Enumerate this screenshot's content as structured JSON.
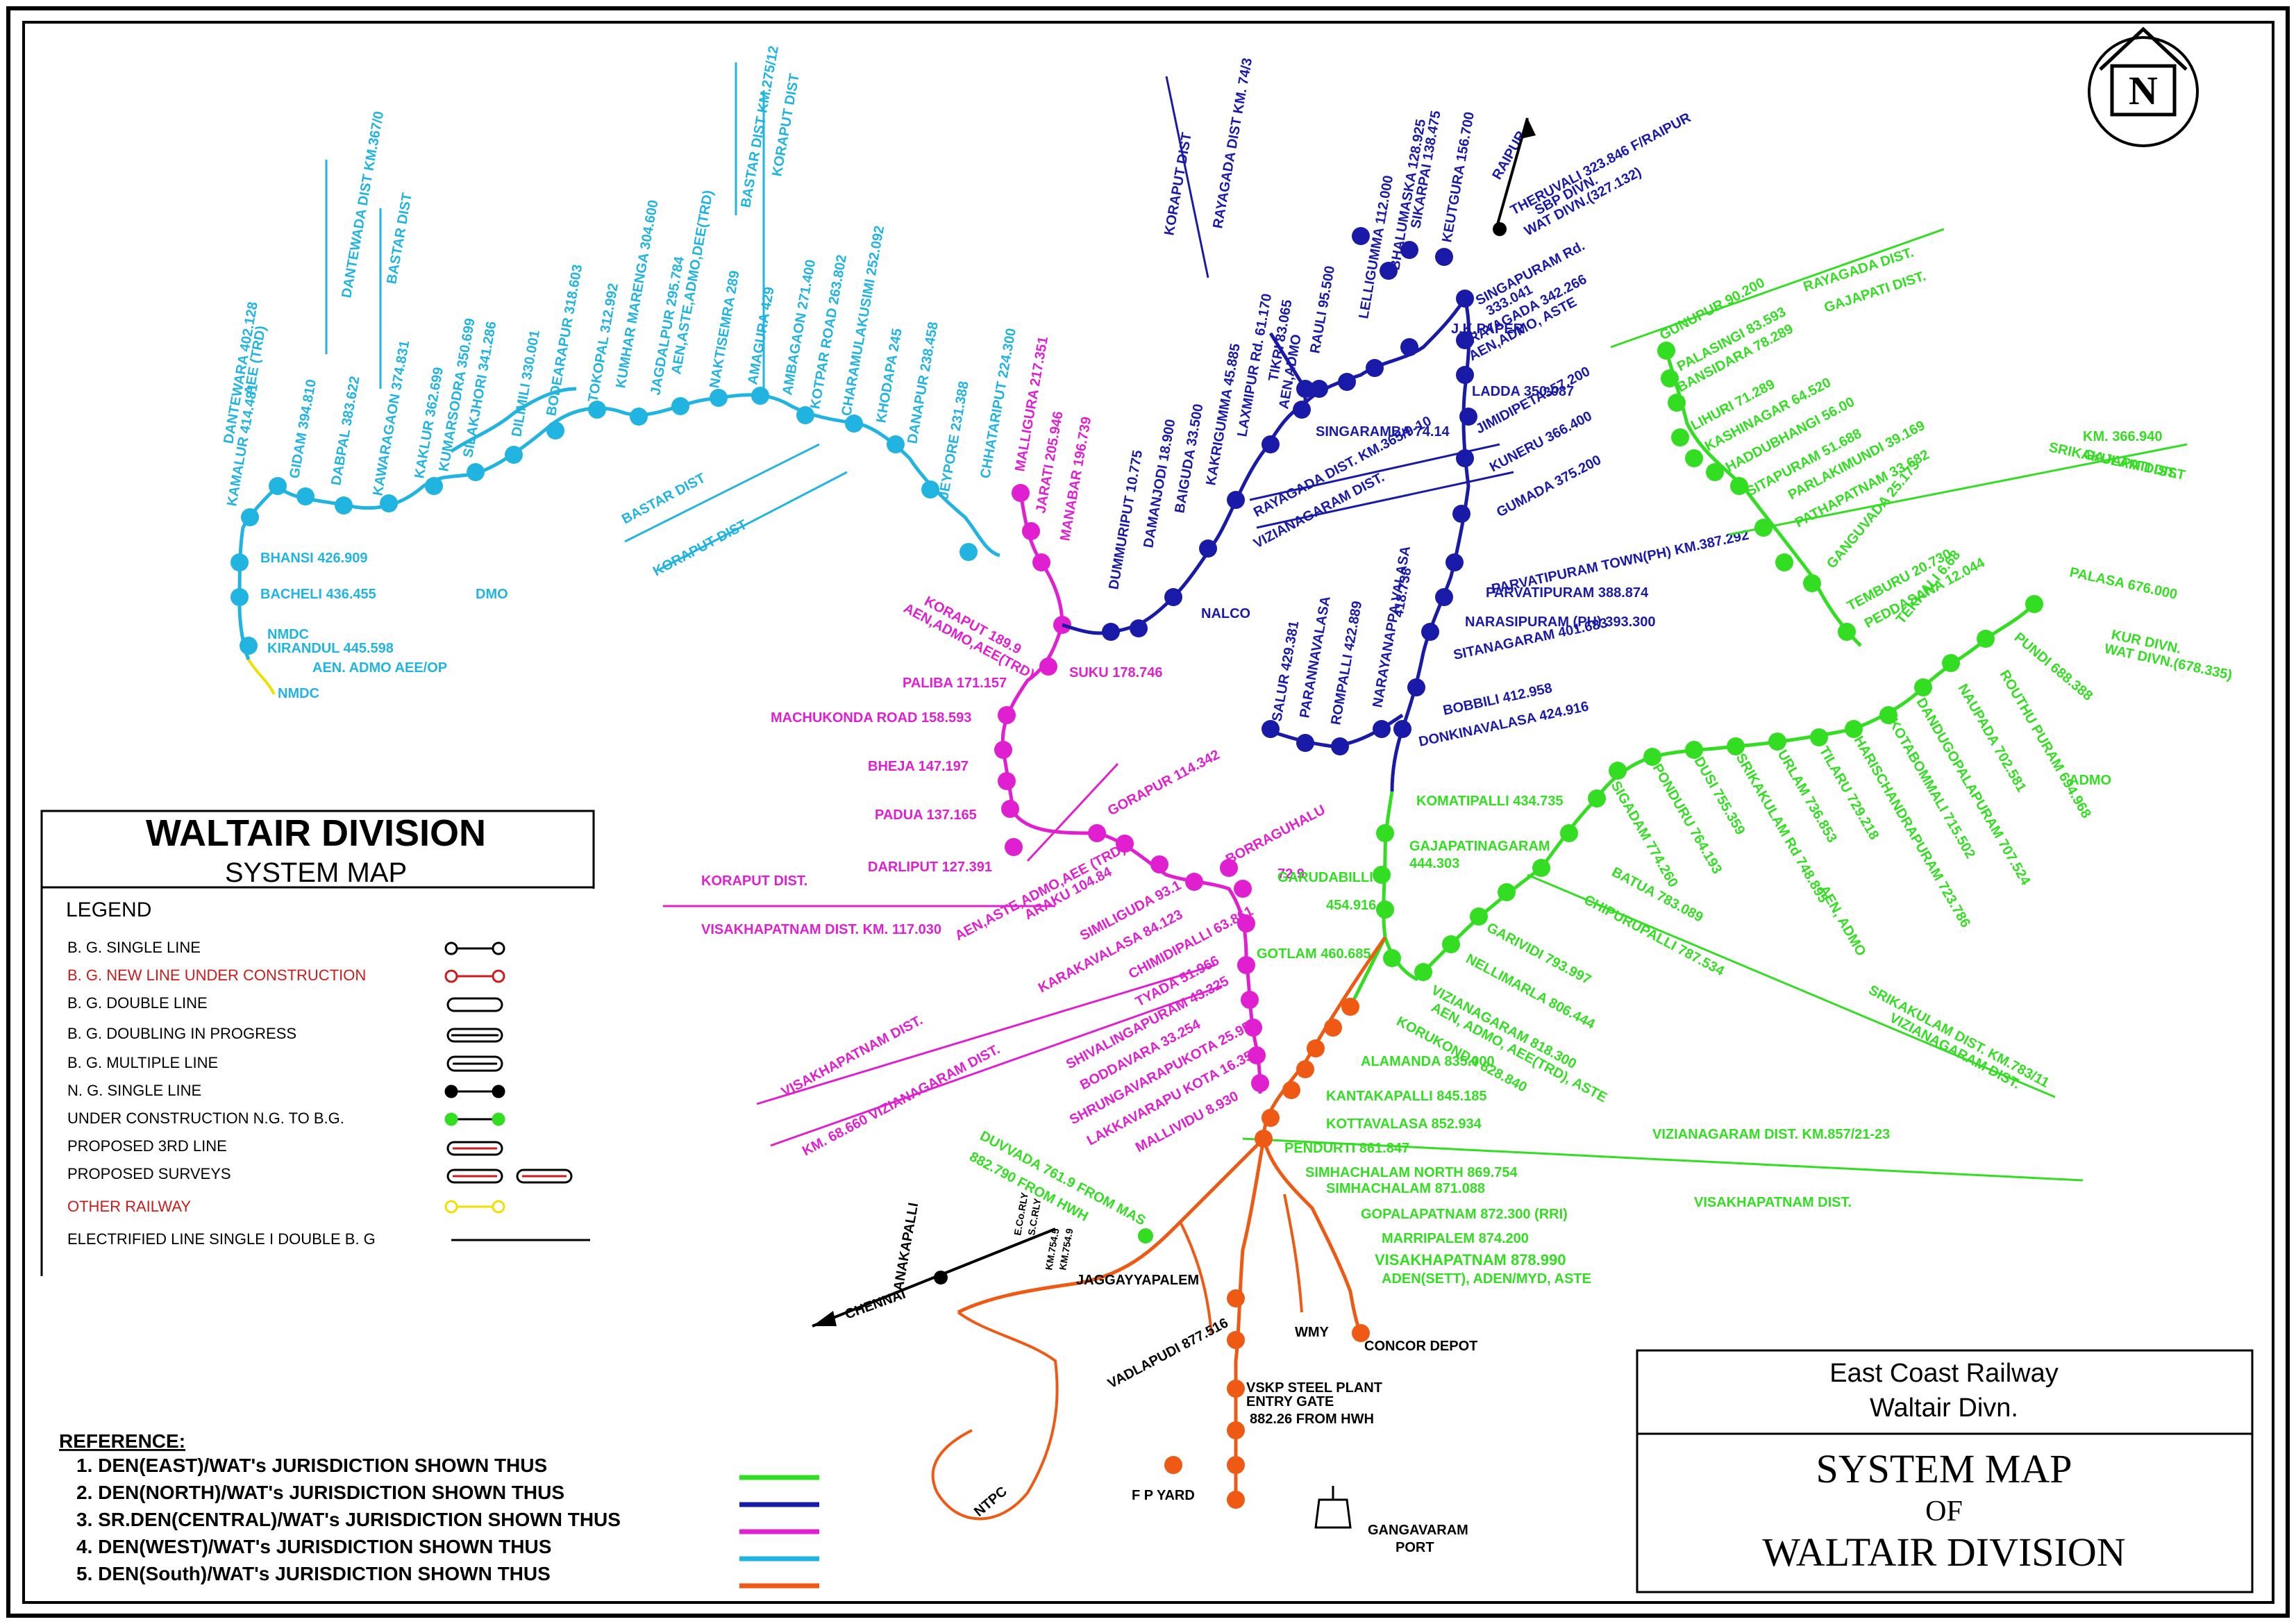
{
  "colors": {
    "east": "#33dd22",
    "north": "#1a1aa8",
    "central": "#e020d0",
    "west": "#22b4e0",
    "south": "#ee5a14",
    "other": "#f0e000",
    "black": "#000000"
  },
  "north_arrow": {
    "letter": "N"
  },
  "title_box": {
    "title": "WALTAIR DIVISION",
    "subtitle": "SYSTEM MAP",
    "legend_heading": "LEGEND",
    "items": [
      "B. G. SINGLE LINE",
      "B. G. NEW LINE UNDER CONSTRUCTION",
      "B. G. DOUBLE LINE",
      "B. G. DOUBLING IN PROGRESS",
      "B. G. MULTIPLE LINE",
      "N. G. SINGLE LINE",
      "UNDER CONSTRUCTION N.G. TO B.G.",
      "PROPOSED 3RD LINE",
      "PROPOSED SURVEYS",
      "OTHER RAILWAY",
      "ELECTRIFIED LINE SINGLE I DOUBLE B. G"
    ]
  },
  "reference": {
    "heading": "REFERENCE:",
    "items": [
      "1.    DEN(EAST)/WAT's JURISDICTION SHOWN THUS",
      "2.    DEN(NORTH)/WAT's JURISDICTION SHOWN THUS",
      "3.    SR.DEN(CENTRAL)/WAT's JURISDICTION SHOWN THUS",
      "4.    DEN(WEST)/WAT's JURISDICTION SHOWN THUS",
      "5.    DEN(South)/WAT's JURISDICTION SHOWN THUS"
    ]
  },
  "info_box": {
    "org_line1": "East Coast Railway",
    "org_line2": "Waltair Divn.",
    "map_line1": "SYSTEM  MAP",
    "map_line2": "OF",
    "map_line3": "WALTAIR  DIVISION"
  },
  "labels": {
    "west": [
      "KAMALUR 414.481",
      "DANTEWARA 402.128",
      "AEE (TRD)",
      "GIDAM 394.810",
      "DABPAL 383.622",
      "KAWARAGAON 374.831",
      "KAKLUR 362.699",
      "KUMARSODRA 350.699",
      "SILAKJHORI 341.286",
      "DILIMILI 330.001",
      "BODEARAPUR 318.603",
      "TOKOPAL 312.992",
      "KUMHAR MARENGA 304.600",
      "JAGDALPUR 295.784",
      "AEN,ASTE,ADMO,DEE(TRD)",
      "NAKTISEMRA 289",
      "AMAGURA 429",
      "AMBAGAON 271.400",
      "KOTPAR ROAD 263.802",
      "CHARAMULAKUSIMI 252.092",
      "KHODAPA 245",
      "DANAPUR 238.458",
      "JEYPORE 231.388",
      "CHHATARIPUT 224.300",
      "DANTEWADA DIST KM.367/0",
      "BASTAR DIST",
      "BASTAR DIST KM.275/12",
      "KORAPUT DIST",
      "BASTAR DIST",
      "KORAPUT DIST",
      "BHANSI 426.909",
      "BACHELI 436.455",
      "DMO",
      "NMDC",
      "KIRANDUL 445.598",
      "AEN.  ADMO   AEE/OP",
      "NMDC"
    ],
    "central": [
      "MALLIGURA 217.351",
      "JARATI 205.946",
      "MANABAR 196.739",
      "KORAPUT 189.9",
      "AEN,ADMO,AEE(TRD)",
      "SUKU 178.746",
      "PALIBA 171.157",
      "MACHUKONDA ROAD 158.593",
      "BHEJA 147.197",
      "PADUA 137.165",
      "DARLIPUT 127.391",
      "GORAPUR 114.342",
      "ARAKU 104.84",
      "AEN,ASTE,ADMO,AEE (TRD)",
      "SIMILIGUDA 93.1",
      "BORRAGUHALU",
      "72.9",
      "KARAKAVALASA 84.123",
      "CHIMIDIPALLI 63.861",
      "TYADA 51.966",
      "SHIVALINGAPURAM 43.325",
      "BODDAVARA 33.254",
      "SHRUNGAVARAPUKOTA 25.959",
      "LAKKAVARAPU KOTA 16.350",
      "MALLIVIDU 8.930",
      "KORAPUT DIST.",
      "VISAKHAPATNAM DIST. KM. 117.030",
      "VISAKHAPATNAM DIST.",
      "KM. 68.660  VIZIANAGARAM DIST."
    ],
    "north": [
      "KORAPUT DIST",
      "RAYAGADA DIST KM. 74/3",
      "THERUVALI 323.846 F/RAIPUR",
      "SBP DIVN.",
      "WAT DIVN.(327.132)",
      "RAIPUR",
      "SIKARPAI 138.475",
      "KEUTGURA 156.700",
      "BHALUMASKA 128.925",
      "LELLIGUMMA 112.000",
      "RAULI 95.500",
      "TIKRI 83.065",
      "LAXMIPUR Rd. 61.170",
      "AEN,ADMO",
      "KAKRIGUMMA 45.885",
      "BAIGUDA 33.500",
      "DAMANJODI 18.900",
      "DUMMURIPUT 10.775",
      "NALCO",
      "SINGARAMBA 74.14",
      "SINGAPURAM Rd.",
      "333.041",
      "J.K.PAPER",
      "RAYAGADA 342.266",
      "AEN,ADMO, ASTE",
      "LADDA 350.087",
      "JIMIDIPETA357.200",
      "KUNERU 366.400",
      "GUMADA 375.200",
      "RAYAGADA DIST. KM.365/9-10",
      "VIZIANAGARAM DIST.",
      "PARVATIPURAM TOWN(PH) KM.387.292",
      "PARVATIPURAM 388.874",
      "NARASIPURAM (PH)  393.300",
      "SITANAGARAM 401.683",
      "BOBBILI 412.958",
      "DONKINAVALASA 424.916",
      "SALUR 429.381",
      "PARANNAVALASA",
      "ROMPALLI 422.889",
      "NARAYANAPPA VALASA",
      "418.738"
    ],
    "east": [
      "RAYAGADA DIST.",
      "GAJAPATI DIST.",
      "GUNUPUR 90.200",
      "PALASINGI 83.593",
      "BANSIDARA 78.289",
      "LIHURI 71.289",
      "KASHINAGAR 64.520",
      "HADDUBHANGI 56.00",
      "SITAPURAM 51.688",
      "PARLAKIMUNDI 39.169",
      "PATHAPATNAM 33.682",
      "GANGUVADA 25.173",
      "TEMBURU 20.730",
      "PEDDASANA 12.044",
      "TEKKALI 6.68",
      "KM. 366.940",
      "GAJAPATI DIST",
      "SRIKAKULAM DIST.",
      "PALASA 676.000",
      "KUR DIVN.",
      "WAT DIVN.(678.335)",
      "PUNDI 688.388",
      "ROUTHU PURAM 694.968",
      "NAUPADA 702.581",
      "ADMO",
      "DANDUGOPALAPURAM 707.524",
      "KOTABOMMALI 715.502",
      "HARISCHANDRAPURAM 723.786",
      "TILARU 729.218",
      "URLAM 736.853",
      "SRIKAKULAM Rd 748.895",
      "AEN, ADMO",
      "DUSI 755.359",
      "PONDURU 764.193",
      "SIGADAM 774.260",
      "BATUA 783.089",
      "CHIPURUPALLI 787.534",
      "GARIVIDI 793.997",
      "NELLIMARLA 806.444",
      "VIZIANAGARAM 818.300",
      "AEN, ADMO, AEE(TRD), ASTE",
      "KORUKONDA 828.840",
      "KOMATIPALLI 434.735",
      "GAJAPATINAGARAM",
      "444.303",
      "GARUDABILLI",
      "454.916",
      "GOTLAM 460.685",
      "SRIKAKULAM DIST. KM.783/11",
      "VIZIANAGARAM DIST.",
      "VIZIANAGARAM DIST. KM.857/21-23",
      "VISAKHAPATNAM DIST.",
      "DUVVADA 761.9 FROM MAS",
      "882.790 FROM HWH"
    ],
    "south": [
      "ALAMANDA 835.000",
      "KANTAKAPALLI 845.185",
      "KOTTAVALASA 852.934",
      "PENDURTI 861.847",
      "SIMHACHALAM NORTH 869.754",
      "SIMHACHALAM 871.088",
      "GOPALAPATNAM 872.300 (RRI)",
      "MARRIPALEM 874.200",
      "VISAKHAPATNAM 878.990",
      "ADEN(SETT), ADEN/MYD, ASTE",
      "JAGGAYYAPALEM",
      "VADLAPUDI 877.516",
      "VSKP STEEL PLANT",
      "ENTRY GATE",
      "882.26 FROM HWH",
      "WMY",
      "CONCOR DEPOT",
      "F P YARD",
      "NTPC",
      "GANGAVARAM",
      "PORT",
      "ANAKAPALLI",
      "CHENNAI",
      "E.Co.RLY",
      "S.C.RLY",
      "KM.754.5",
      "KM.754.9"
    ]
  }
}
